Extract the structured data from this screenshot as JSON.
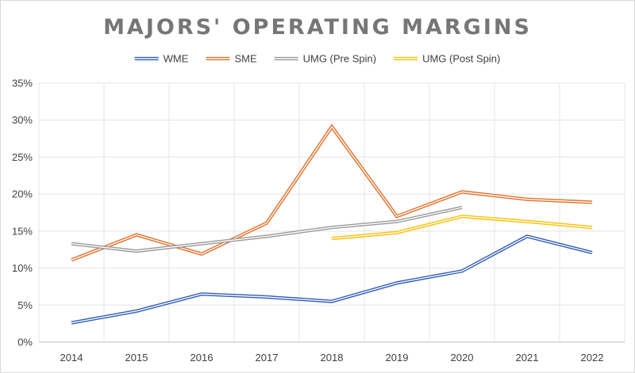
{
  "chart_data": {
    "type": "line",
    "title": "MAJORS' OPERATING MARGINS",
    "xlabel": "",
    "ylabel": "",
    "x": [
      "2014",
      "2015",
      "2016",
      "2017",
      "2018",
      "2019",
      "2020",
      "2021",
      "2022"
    ],
    "y_ticks": [
      "0%",
      "5%",
      "10%",
      "15%",
      "20%",
      "25%",
      "30%",
      "35%"
    ],
    "ylim": [
      0,
      35
    ],
    "grid": true,
    "legend_position": "top",
    "series": [
      {
        "name": "WME",
        "color": "#2e5cb8",
        "values": [
          2.6,
          4.2,
          6.5,
          6.1,
          5.5,
          8.0,
          9.6,
          14.3,
          12.1
        ]
      },
      {
        "name": "SME",
        "color": "#e2702a",
        "values": [
          11.1,
          14.5,
          11.9,
          16.1,
          29.1,
          17.0,
          20.3,
          19.3,
          18.9
        ]
      },
      {
        "name": "UMG (Pre Spin)",
        "color": "#999999",
        "values": [
          13.3,
          12.3,
          13.3,
          14.3,
          15.5,
          16.3,
          18.2,
          null,
          null
        ]
      },
      {
        "name": "UMG (Post Spin)",
        "color": "#ffc000",
        "values": [
          null,
          null,
          null,
          null,
          14.0,
          14.8,
          17.0,
          16.3,
          15.5
        ]
      }
    ]
  }
}
